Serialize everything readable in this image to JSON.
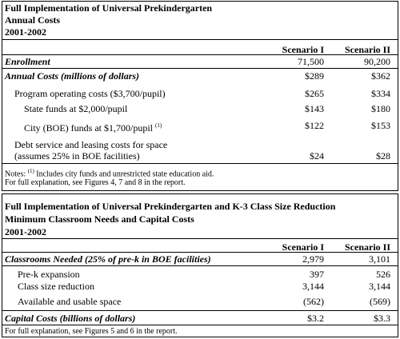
{
  "table1": {
    "title": [
      "Full Implementation of Universal Prekindergarten",
      "Annual Costs",
      "2001-2002"
    ],
    "columns": [
      "Scenario I",
      "Scenario II"
    ],
    "rows": [
      {
        "label": "Enrollment",
        "values": [
          "71,500",
          "90,200"
        ]
      },
      {
        "label": "Annual Costs (millions of dollars)",
        "values": [
          "$289",
          "$362"
        ]
      },
      {
        "label": "Program operating costs ($3,700/pupil)",
        "values": [
          "$265",
          "$334"
        ]
      },
      {
        "label": "State funds at $2,000/pupil",
        "values": [
          "$143",
          "$180"
        ]
      },
      {
        "label": "City (BOE) funds at $1,700/pupil",
        "note_ref": "(1)",
        "values": [
          "$122",
          "$153"
        ]
      },
      {
        "label": "Debt service and leasing costs for space (assumes 25% in BOE facilities)",
        "values": [
          "$24",
          "$28"
        ]
      }
    ],
    "notes": {
      "prefix": "Notes:",
      "ref": "(1)",
      "text": "Includes city funds and unrestricted state education aid."
    },
    "footnote": "For full explanation, see Figures 4, 7 and 8 in the report."
  },
  "table2": {
    "title": [
      "Full Implementation of Universal Prekindergarten and K-3 Class Size Reduction",
      "Minimum Classroom Needs and Capital Costs",
      "2001-2002"
    ],
    "columns": [
      "Scenario I",
      "Scenario II"
    ],
    "rows": [
      {
        "label": "Classrooms Needed (25% of pre-k in BOE facilities)",
        "values": [
          "2,979",
          "3,101"
        ]
      },
      {
        "label": "Pre-k expansion",
        "values": [
          "397",
          "526"
        ]
      },
      {
        "label": "Class size reduction",
        "values": [
          "3,144",
          "3,144"
        ]
      },
      {
        "label": "Available and usable space",
        "values": [
          "(562)",
          "(569)"
        ]
      },
      {
        "label": "Capital Costs (billions of dollars)",
        "values": [
          "$3.2",
          "$3.3"
        ]
      }
    ],
    "footnote": "For full explanation, see Figures 5 and 6 in the report."
  }
}
